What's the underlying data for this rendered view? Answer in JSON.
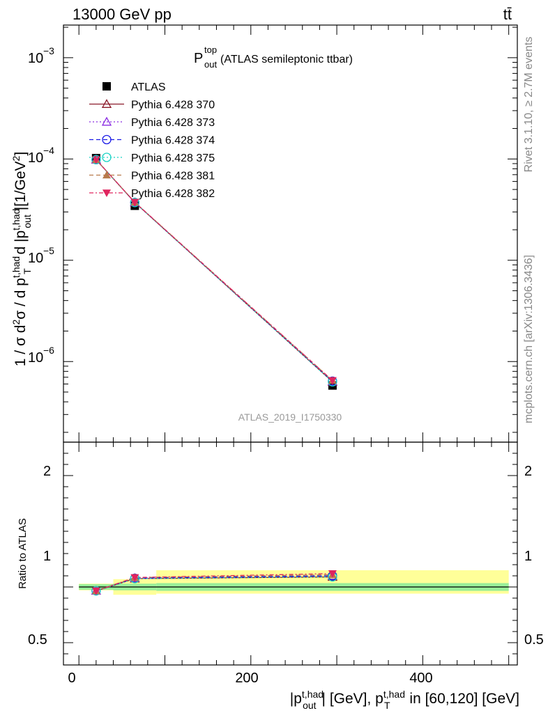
{
  "header": {
    "energy_label": "13000 GeV pp",
    "process_label": "tt̄",
    "rivet_label": "Rivet 3.1.10, ≥ 2.7M events",
    "site_label": "mcplots.cern.ch [arXiv:1306.3436]",
    "analysis_id": "ATLAS_2019_I1750330"
  },
  "main_plot": {
    "title_main": "P",
    "title_sup": "top",
    "title_sub": "out",
    "title_rest": " (ATLAS semileptonic ttbar)",
    "ylabel": "1 / σ d²σ / d p_T^{t,had} d |p_out^{t,had}| [1/GeV²]",
    "y_tick_labels": [
      "10",
      "10",
      "10",
      "10"
    ],
    "y_tick_exps": [
      "−3",
      "−4",
      "−5",
      "−6"
    ]
  },
  "ratio_plot": {
    "ylabel": "Ratio to ATLAS",
    "y_tick_labels": [
      "2",
      "1",
      "0.5"
    ]
  },
  "xaxis": {
    "xlabel": "|p_out^{t,had}| [GeV], p_T^{t,had} in [60,120] [GeV]",
    "tick_labels": [
      "0",
      "200",
      "400"
    ]
  },
  "legend": [
    {
      "name": "ATLAS",
      "color": "#000000",
      "marker": "square-filled",
      "line": "none"
    },
    {
      "name": "Pythia 6.428 370",
      "color": "#8b1a2a",
      "marker": "triangle-open",
      "line": "solid"
    },
    {
      "name": "Pythia 6.428 373",
      "color": "#8a2be2",
      "marker": "triangle-open",
      "line": "dotted"
    },
    {
      "name": "Pythia 6.428 374",
      "color": "#1a1ae6",
      "marker": "circle-open",
      "line": "dashed"
    },
    {
      "name": "Pythia 6.428 375",
      "color": "#19d3c5",
      "marker": "circle-open",
      "line": "dotted"
    },
    {
      "name": "Pythia 6.428 381",
      "color": "#b87a4b",
      "marker": "triangle-filled",
      "line": "dashed"
    },
    {
      "name": "Pythia 6.428 382",
      "color": "#e0245e",
      "marker": "triangle-down-filled",
      "line": "dashdot"
    }
  ],
  "chart_data": {
    "type": "scatter",
    "x_bins": [
      [
        0,
        40
      ],
      [
        40,
        90
      ],
      [
        90,
        500
      ]
    ],
    "x": [
      20,
      65,
      295
    ],
    "xlim": [
      -18,
      510
    ],
    "main_ylim": [
      1.6e-07,
      0.0021
    ],
    "main_yscale": "log",
    "ratio_ylim": [
      0.3,
      2.3
    ],
    "data": {
      "name": "ATLAS",
      "values": [
        0.000102,
        3.45e-05,
        5.8e-07
      ],
      "ratio_band_stat": [
        [
          0.975,
          1.025
        ],
        [
          0.97,
          1.03
        ],
        [
          0.965,
          1.035
        ]
      ],
      "ratio_band_total": [
        [
          0.97,
          1.03
        ],
        [
          0.93,
          1.07
        ],
        [
          0.94,
          1.15
        ]
      ]
    },
    "series": [
      {
        "name": "Pythia 6.428 370",
        "values": [
          9.85e-05,
          3.72e-05,
          6.3e-07
        ],
        "ratios": [
          0.965,
          1.075,
          1.09
        ]
      },
      {
        "name": "Pythia 6.428 373",
        "values": [
          9.85e-05,
          3.73e-05,
          6.35e-07
        ],
        "ratios": [
          0.965,
          1.08,
          1.1
        ]
      },
      {
        "name": "Pythia 6.428 374",
        "values": [
          9.85e-05,
          3.72e-05,
          6.4e-07
        ],
        "ratios": [
          0.965,
          1.078,
          1.1
        ]
      },
      {
        "name": "Pythia 6.428 375",
        "values": [
          9.85e-05,
          3.72e-05,
          6.3e-07
        ],
        "ratios": [
          0.965,
          1.075,
          1.09
        ]
      },
      {
        "name": "Pythia 6.428 381",
        "values": [
          9.85e-05,
          3.74e-05,
          6.5e-07
        ],
        "ratios": [
          0.965,
          1.085,
          1.11
        ]
      },
      {
        "name": "Pythia 6.428 382",
        "values": [
          9.85e-05,
          3.74e-05,
          6.5e-07
        ],
        "ratios": [
          0.965,
          1.085,
          1.12
        ]
      }
    ]
  }
}
